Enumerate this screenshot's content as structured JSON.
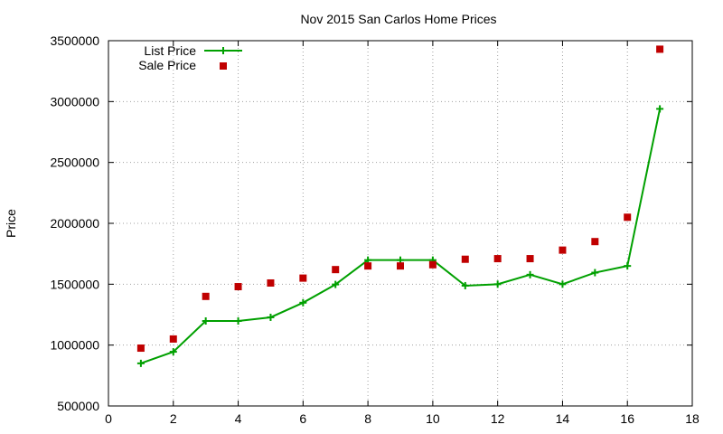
{
  "chart_data": {
    "type": "line",
    "title": "Nov 2015 San Carlos Home Prices",
    "xlabel": "",
    "ylabel": "Price",
    "xlim": [
      0,
      18
    ],
    "ylim": [
      500000,
      3500000
    ],
    "x_ticks": [
      0,
      2,
      4,
      6,
      8,
      10,
      12,
      14,
      16,
      18
    ],
    "y_ticks": [
      500000,
      1000000,
      1500000,
      2000000,
      2500000,
      3000000,
      3500000
    ],
    "grid": true,
    "legend_position": "top-left",
    "series": [
      {
        "name": "List Price",
        "style": "linespoints",
        "color": "#00a000",
        "x": [
          1,
          2,
          3,
          4,
          5,
          6,
          7,
          8,
          9,
          10,
          11,
          12,
          13,
          14,
          15,
          16,
          17
        ],
        "values": [
          850000,
          945000,
          1198000,
          1198000,
          1228000,
          1348000,
          1498000,
          1698000,
          1698000,
          1698000,
          1488000,
          1500000,
          1578000,
          1500000,
          1595000,
          1650000,
          2940000
        ]
      },
      {
        "name": "Sale Price",
        "style": "points",
        "color": "#c00000",
        "x": [
          1,
          2,
          3,
          4,
          5,
          6,
          7,
          8,
          9,
          10,
          11,
          12,
          13,
          14,
          15,
          16,
          17
        ],
        "values": [
          975000,
          1050000,
          1400000,
          1480000,
          1510000,
          1550000,
          1620000,
          1650000,
          1650000,
          1660000,
          1705000,
          1710000,
          1710000,
          1780000,
          1850000,
          2050000,
          3430000
        ]
      }
    ]
  }
}
